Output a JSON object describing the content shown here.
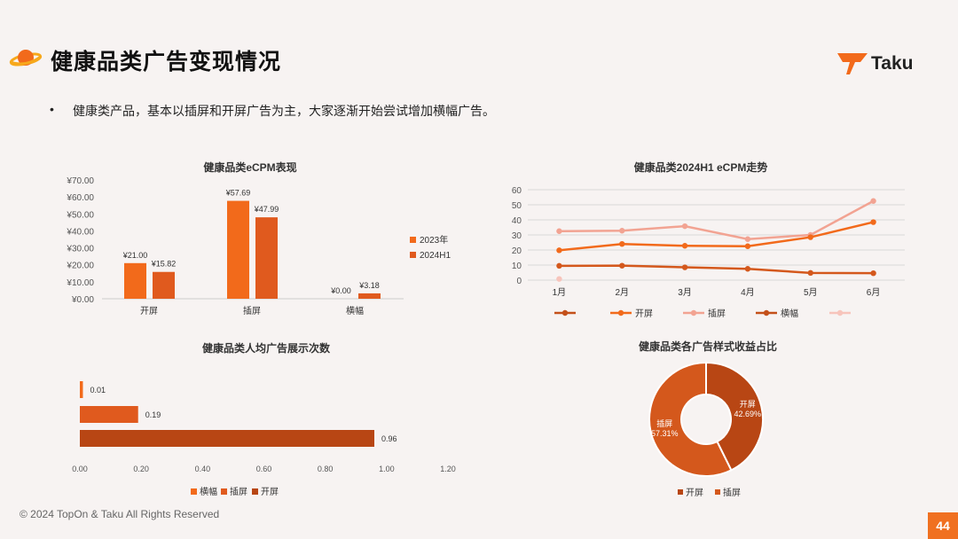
{
  "page": {
    "title": "健康品类广告变现情况",
    "bullet": "•",
    "subtitle": "健康类产品，基本以插屏和开屏广告为主，大家逐渐开始尝试增加横幅广告。",
    "brand": "Taku",
    "footer": "© 2024 TopOn & Taku All Rights Reserved",
    "page_number": "44"
  },
  "colors": {
    "accent": "#f26a1b",
    "dark": "#c4501a",
    "light": "#f2a392",
    "lighter": "#f7c4bb"
  },
  "chart_data": [
    {
      "id": "ecpm_bar",
      "type": "bar",
      "title": "健康品类eCPM表现",
      "categories": [
        "开屏",
        "插屏",
        "横幅"
      ],
      "series": [
        {
          "name": "2023年",
          "values": [
            21.0,
            57.69,
            0.0
          ],
          "labels": [
            "¥21.00",
            "¥57.69",
            "¥0.00"
          ],
          "color": "#f26a1b"
        },
        {
          "name": "2024H1",
          "values": [
            15.82,
            47.99,
            3.18
          ],
          "labels": [
            "¥15.82",
            "¥47.99",
            "¥3.18"
          ],
          "color": "#e05a1e"
        }
      ],
      "ylim": [
        0,
        70
      ],
      "yticks": [
        "¥0.00",
        "¥10.00",
        "¥20.00",
        "¥30.00",
        "¥40.00",
        "¥50.00",
        "¥60.00",
        "¥70.00"
      ],
      "legend": "right",
      "grid": false
    },
    {
      "id": "ecpm_line",
      "type": "line",
      "title": "健康品类2024H1 eCPM走势",
      "categories": [
        "1月",
        "2月",
        "3月",
        "4月",
        "5月",
        "6月"
      ],
      "series": [
        {
          "name": "插屏",
          "values": [
            32.5,
            32.8,
            35.8,
            27.2,
            30.0,
            52.5
          ],
          "color": "#f2a392"
        },
        {
          "name": "开屏",
          "values": [
            19.8,
            24.0,
            22.8,
            22.5,
            28.5,
            38.5
          ],
          "color": "#f26a1b"
        },
        {
          "name": "横幅",
          "values": [
            9.5,
            9.6,
            8.5,
            7.5,
            4.8,
            4.6
          ],
          "color": "#d4581c"
        },
        {
          "name": "",
          "values": [
            0.8,
            null,
            null,
            null,
            null,
            null
          ],
          "color": "#f7c4bb"
        }
      ],
      "legend_entries": [
        {
          "name": "",
          "color": "#c4501a"
        },
        {
          "name": "开屏",
          "color": "#f26a1b"
        },
        {
          "name": "插屏",
          "color": "#f2a392"
        },
        {
          "name": "横幅",
          "color": "#c4501a"
        },
        {
          "name": "",
          "color": "#f7c4bb"
        }
      ],
      "ylim": [
        0,
        60
      ],
      "yticks": [
        "0",
        "10",
        "20",
        "30",
        "40",
        "50",
        "60"
      ],
      "grid": true,
      "legend": "bottom"
    },
    {
      "id": "impressions_hbar",
      "type": "bar",
      "orientation": "horizontal",
      "title": "健康品类人均广告展示次数",
      "categories": [
        "横幅",
        "插屏",
        "开屏"
      ],
      "values": [
        0.01,
        0.19,
        0.96
      ],
      "labels": [
        "0.01",
        "0.19",
        "0.96"
      ],
      "colors": [
        "#f26a1b",
        "#e05a1e",
        "#b84614"
      ],
      "xlim": [
        0,
        1.2
      ],
      "xticks": [
        "0.00",
        "0.20",
        "0.40",
        "0.60",
        "0.80",
        "1.00",
        "1.20"
      ],
      "legend": "bottom",
      "grid": false
    },
    {
      "id": "revenue_donut",
      "type": "pie",
      "title": "健康品类各广告样式收益占比",
      "slices": [
        {
          "name": "开屏",
          "value": 42.69,
          "label": "42.69%",
          "color": "#b84614"
        },
        {
          "name": "插屏",
          "value": 57.31,
          "label": "57.31%",
          "color": "#d4581c"
        }
      ],
      "legend": "bottom"
    }
  ]
}
